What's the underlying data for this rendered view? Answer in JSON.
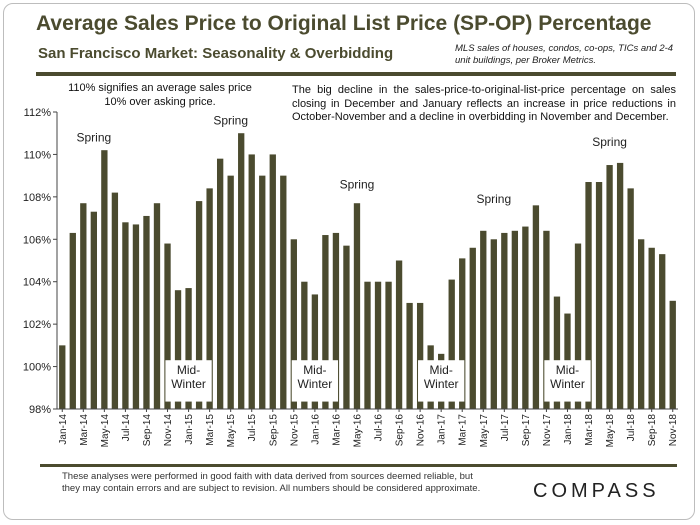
{
  "header": {
    "title": "Average Sales Price to Original List Price (SP-OP) Percentage",
    "subtitle": "San Francisco Market: Seasonality & Overbidding",
    "source_note": "MLS sales of houses, condos, co-ops, TICs and 2-4 unit buildings, per Broker Metrics."
  },
  "notes": {
    "note_110": "110% signifies an average sales price 10% over asking price.",
    "note_decline": "The big decline in the sales-price-to-original-list-price percentage on sales closing in December and January reflects an increase in price reductions in October-November and a decline in overbidding in November and December."
  },
  "footer": {
    "disclaimer": "These analyses were performed in good faith with data derived from sources deemed reliable, but they may contain errors and are subject to revision. All numbers should be considered approximate.",
    "logo": "COMPASS"
  },
  "colors": {
    "bar": "#4b4b2f",
    "text": "#222222",
    "band": "#ffffff"
  },
  "chart_data": {
    "type": "bar",
    "title": "Average Sales Price to Original List Price (SP-OP) Percentage",
    "xlabel": "",
    "ylabel": "",
    "ylim": [
      98,
      112
    ],
    "y_ticks": [
      "98%",
      "100%",
      "102%",
      "104%",
      "106%",
      "108%",
      "110%",
      "112%"
    ],
    "y_tick_values": [
      98,
      100,
      102,
      104,
      106,
      108,
      110,
      112
    ],
    "grid": false,
    "categories": [
      "Jan-14",
      "Feb-14",
      "Mar-14",
      "Apr-14",
      "May-14",
      "Jun-14",
      "Jul-14",
      "Aug-14",
      "Sep-14",
      "Oct-14",
      "Nov-14",
      "Dec-14",
      "Jan-15",
      "Feb-15",
      "Mar-15",
      "Apr-15",
      "May-15",
      "Jun-15",
      "Jul-15",
      "Aug-15",
      "Sep-15",
      "Oct-15",
      "Nov-15",
      "Dec-15",
      "Jan-16",
      "Feb-16",
      "Mar-16",
      "Apr-16",
      "May-16",
      "Jun-16",
      "Jul-16",
      "Aug-16",
      "Sep-16",
      "Oct-16",
      "Nov-16",
      "Dec-16",
      "Jan-17",
      "Feb-17",
      "Mar-17",
      "Apr-17",
      "May-17",
      "Jun-17",
      "Jul-17",
      "Aug-17",
      "Sep-17",
      "Oct-17",
      "Nov-17",
      "Dec-17",
      "Jan-18",
      "Feb-18",
      "Mar-18",
      "Apr-18",
      "May-18",
      "Jun-18",
      "Jul-18",
      "Aug-18",
      "Sep-18",
      "Oct-18",
      "Nov-18"
    ],
    "values": [
      101.0,
      106.3,
      107.7,
      107.3,
      110.2,
      108.2,
      106.8,
      106.7,
      107.1,
      107.7,
      105.8,
      103.6,
      103.7,
      107.8,
      108.4,
      109.8,
      109.0,
      111.0,
      110.0,
      109.0,
      110.0,
      109.0,
      106.0,
      104.0,
      103.4,
      106.2,
      106.3,
      105.7,
      107.7,
      104.0,
      104.0,
      104.0,
      105.0,
      103.0,
      103.0,
      101.0,
      100.6,
      104.1,
      105.1,
      105.6,
      106.4,
      106.0,
      106.3,
      106.4,
      106.6,
      107.6,
      106.4,
      103.3,
      102.5,
      105.8,
      108.7,
      108.7,
      109.5,
      109.6,
      108.4,
      106.0,
      105.6,
      105.3,
      103.1
    ],
    "x_tick_labels": [
      "Jan-14",
      "Mar-14",
      "May-14",
      "Jul-14",
      "Sep-14",
      "Nov-14",
      "Jan-15",
      "Mar-15",
      "May-15",
      "Jul-15",
      "Sep-15",
      "Nov-15",
      "Jan-16",
      "Mar-16",
      "May-16",
      "Jul-16",
      "Sep-16",
      "Nov-16",
      "Jan-17",
      "Mar-17",
      "May-17",
      "Jul-17",
      "Sep-17",
      "Nov-17",
      "Jan-18",
      "Mar-18",
      "May-18",
      "Jul-18",
      "Sep-18",
      "Nov-18"
    ],
    "annotations": [
      {
        "text": "Spring",
        "category": "Apr-14",
        "value": 110.6
      },
      {
        "text": "Spring",
        "category": "May-15",
        "value": 111.4
      },
      {
        "text": "Spring",
        "category": "May-16",
        "value": 108.4
      },
      {
        "text": "Spring",
        "category": "Jun-17",
        "value": 107.7
      },
      {
        "text": "Spring",
        "category": "May-18",
        "value": 110.4
      }
    ],
    "mid_winter_labels": [
      {
        "line1": "Mid-",
        "line2": "Winter",
        "category": "Jan-15"
      },
      {
        "line1": "Mid-",
        "line2": "Winter",
        "category": "Jan-16"
      },
      {
        "line1": "Mid-",
        "line2": "Winter",
        "category": "Jan-17"
      },
      {
        "line1": "Mid-",
        "line2": "Winter",
        "category": "Jan-18"
      }
    ]
  }
}
